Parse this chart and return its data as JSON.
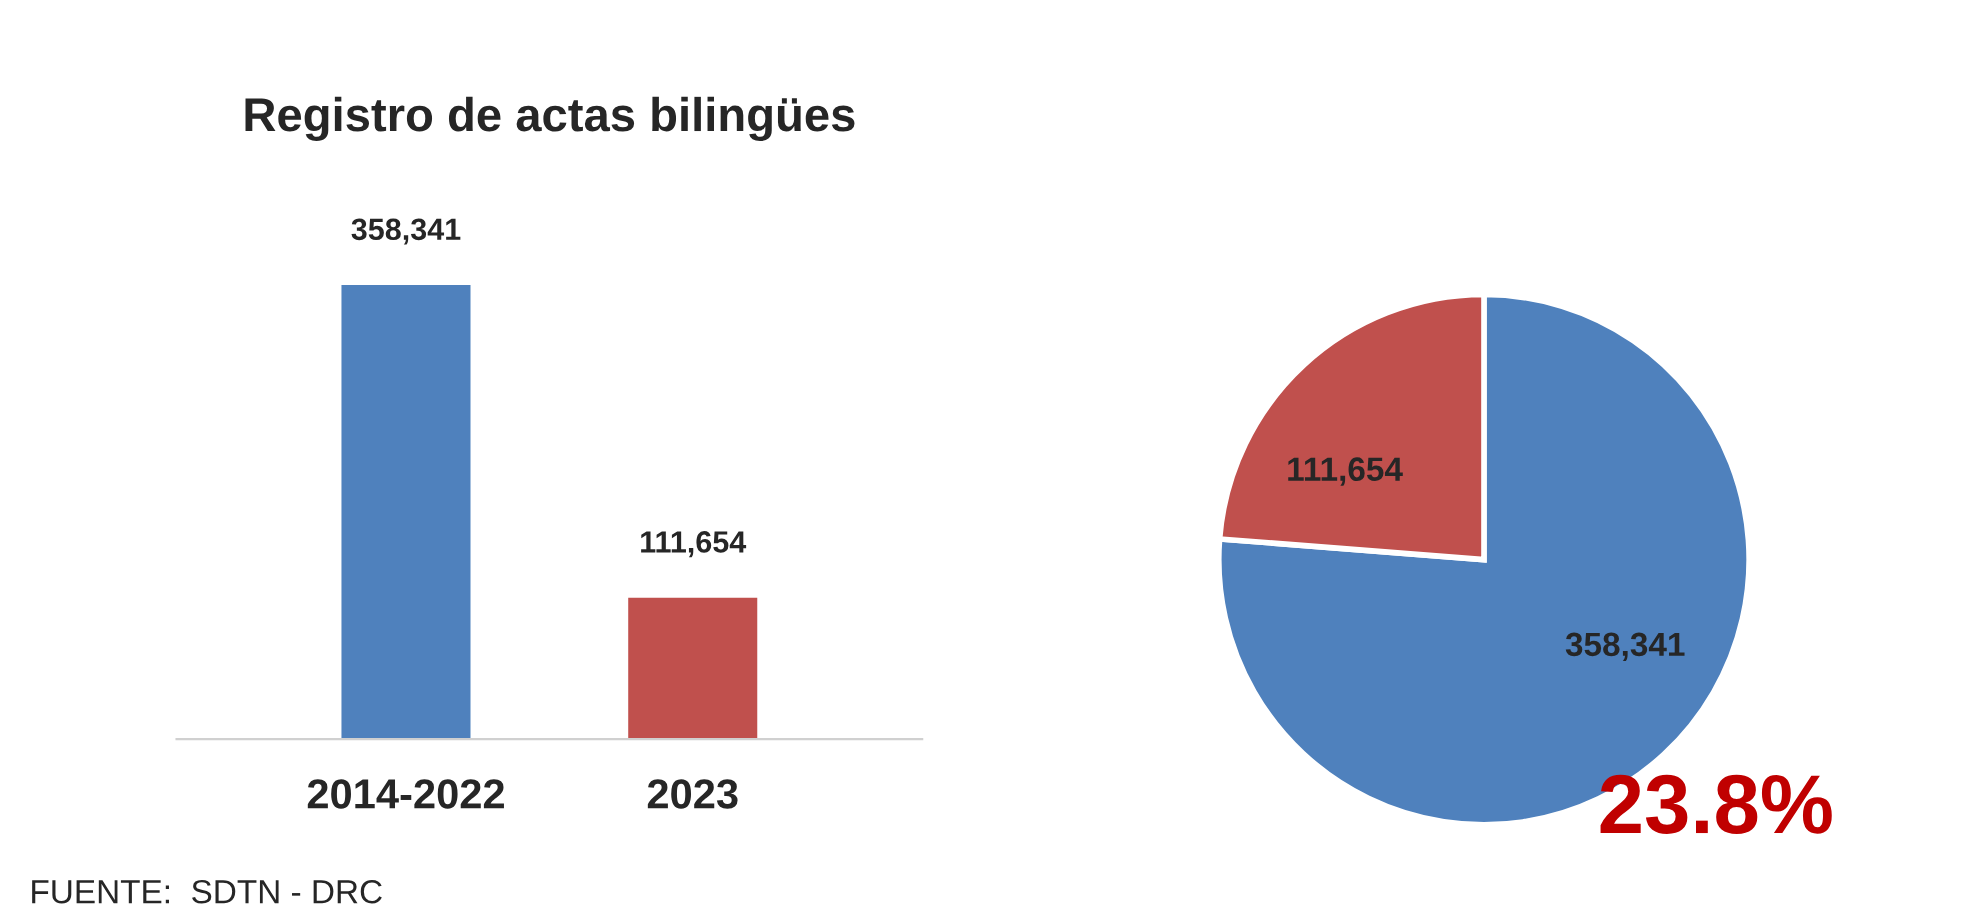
{
  "chart_data": [
    {
      "type": "bar",
      "title": "Registro de actas bilingües",
      "categories": [
        "2014-2022",
        "2023"
      ],
      "values": [
        358341,
        111654
      ],
      "colors": [
        "#4f81bd",
        "#c0504d"
      ],
      "value_labels": [
        "358,341",
        "111,654"
      ],
      "annotations": [
        "FUENTE:  SDTN - DRC"
      ]
    },
    {
      "type": "pie",
      "categories": [
        null,
        null
      ],
      "values": [
        358341,
        111654
      ],
      "colors": [
        "#4f81bd",
        "#c0504d"
      ],
      "value_labels": [
        "358,341",
        "111,654"
      ],
      "annotations": [
        "23.8%"
      ]
    }
  ]
}
